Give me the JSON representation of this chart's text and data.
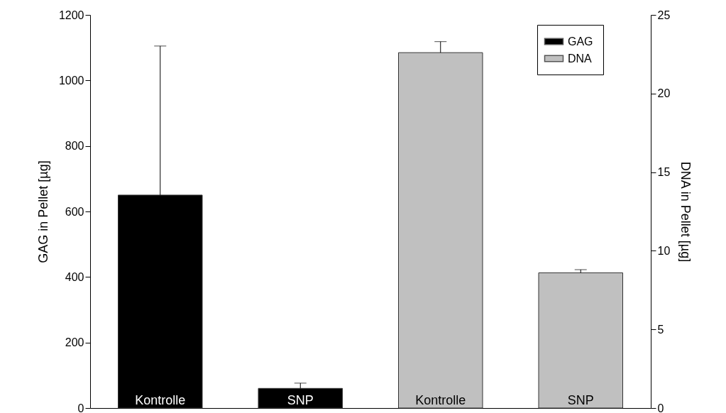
{
  "chart_data": {
    "type": "bar",
    "ylabel": "GAG in Pellet [µg]",
    "y2label": "DNA in Pellet [µg]",
    "categories": [
      "Kontrolle",
      "SNP",
      "Kontrolle",
      "SNP"
    ],
    "series": [
      {
        "name": "GAG",
        "color": "#000000",
        "axis": "y",
        "values": [
          650,
          60,
          null,
          null
        ],
        "errors": [
          [
            650,
            1105
          ],
          [
            60,
            76
          ],
          null,
          null
        ]
      },
      {
        "name": "DNA",
        "color": "#c0c0c0",
        "axis": "y2",
        "values": [
          null,
          null,
          22.6,
          8.6
        ],
        "errors": [
          null,
          null,
          [
            22.6,
            23.3
          ],
          [
            8.6,
            8.8
          ]
        ]
      }
    ],
    "ylim": [
      0,
      1200
    ],
    "yticks": [
      0,
      200,
      400,
      600,
      800,
      1000,
      1200
    ],
    "y2lim": [
      0,
      25
    ],
    "y2ticks": [
      0,
      5,
      10,
      15,
      20,
      25
    ],
    "tick_labels": "y",
    "grid": false,
    "legend": "top right"
  }
}
